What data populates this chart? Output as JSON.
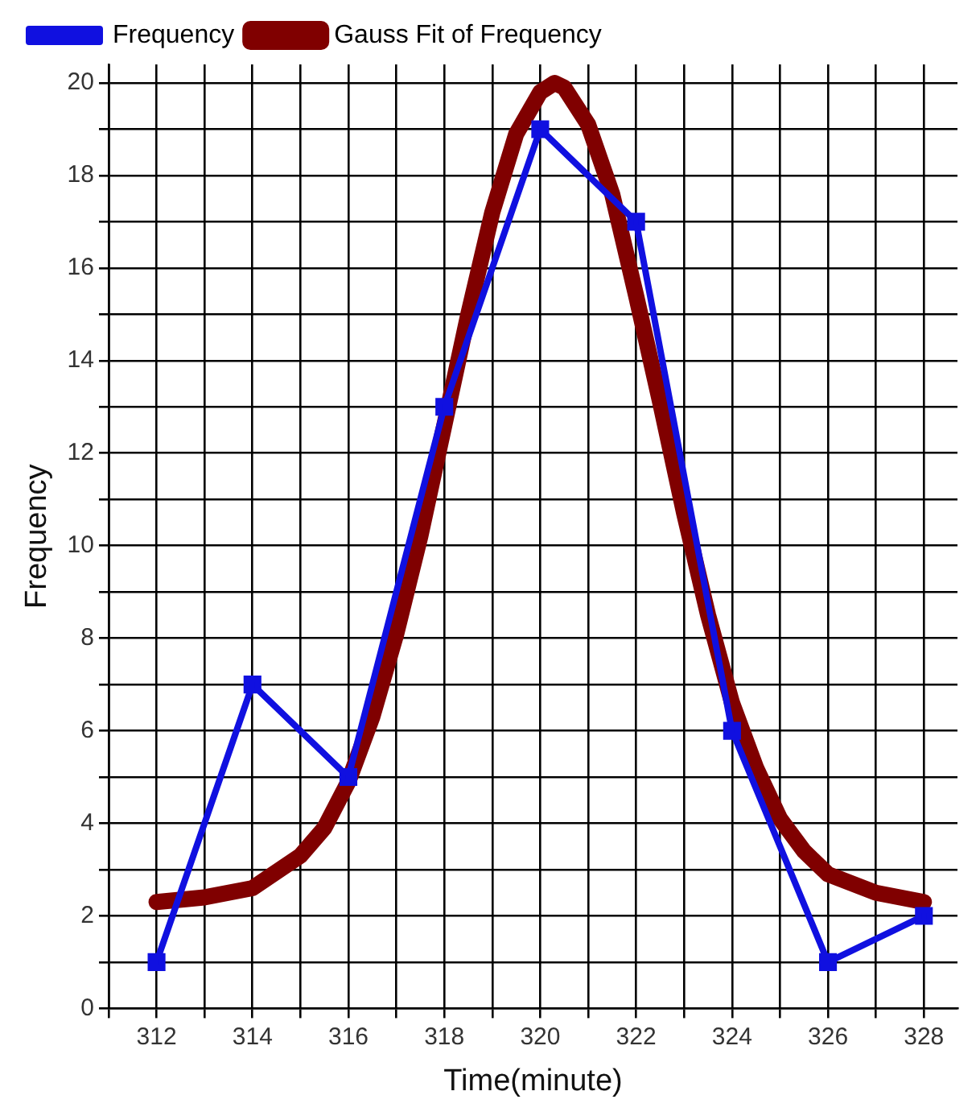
{
  "chart_data": {
    "type": "line",
    "xlabel": "Time(minute)",
    "ylabel": "Frequency",
    "xlim": [
      311,
      328.7
    ],
    "xticks": [
      {
        "value": 311,
        "label": null
      },
      312,
      {
        "value": 313,
        "label": null
      },
      314,
      {
        "value": 315,
        "label": null
      },
      316,
      {
        "value": 317,
        "label": null
      },
      318,
      {
        "value": 319,
        "label": null
      },
      320,
      {
        "value": 321,
        "label": null
      },
      322,
      {
        "value": 323,
        "label": null
      },
      324,
      {
        "value": 325,
        "label": null
      },
      326,
      {
        "value": 327,
        "label": null
      },
      328
    ],
    "ylim": [
      0,
      20.4
    ],
    "yticks": [
      0,
      {
        "value": 1,
        "label": null
      },
      2,
      {
        "value": 3,
        "label": null
      },
      4,
      {
        "value": 5,
        "label": null
      },
      6,
      {
        "value": 7,
        "label": null
      },
      8,
      {
        "value": 9,
        "label": null
      },
      10,
      {
        "value": 11,
        "label": null
      },
      12,
      {
        "value": 13,
        "label": null
      },
      14,
      {
        "value": 15,
        "label": null
      },
      16,
      {
        "value": 17,
        "label": null
      },
      18,
      {
        "value": 19,
        "label": null
      },
      20
    ],
    "grid": true,
    "legend": "top left",
    "series": [
      {
        "name": "Frequency",
        "color": "#1010e0",
        "marker": "square",
        "x": [
          312,
          314,
          316,
          318,
          320,
          322,
          324,
          326,
          328
        ],
        "values": [
          1,
          7,
          5,
          13,
          19,
          17,
          6,
          1,
          2
        ]
      },
      {
        "name": "Gauss Fit of Frequency",
        "color": "#800000",
        "marker": "none",
        "x": [
          312,
          313,
          314,
          315,
          315.5,
          316,
          316.5,
          317,
          317.5,
          318,
          318.5,
          319,
          319.5,
          320,
          320.3,
          320.5,
          321,
          321.5,
          322,
          322.5,
          323,
          323.5,
          324,
          324.5,
          325,
          325.5,
          326,
          327,
          328
        ],
        "values": [
          2.3,
          2.4,
          2.6,
          3.3,
          3.9,
          4.9,
          6.3,
          8.1,
          10.2,
          12.6,
          15,
          17.2,
          18.9,
          19.8,
          20,
          19.9,
          19.1,
          17.6,
          15.4,
          13.1,
          10.7,
          8.5,
          6.6,
          5.2,
          4.1,
          3.4,
          2.9,
          2.5,
          2.3
        ]
      }
    ]
  }
}
